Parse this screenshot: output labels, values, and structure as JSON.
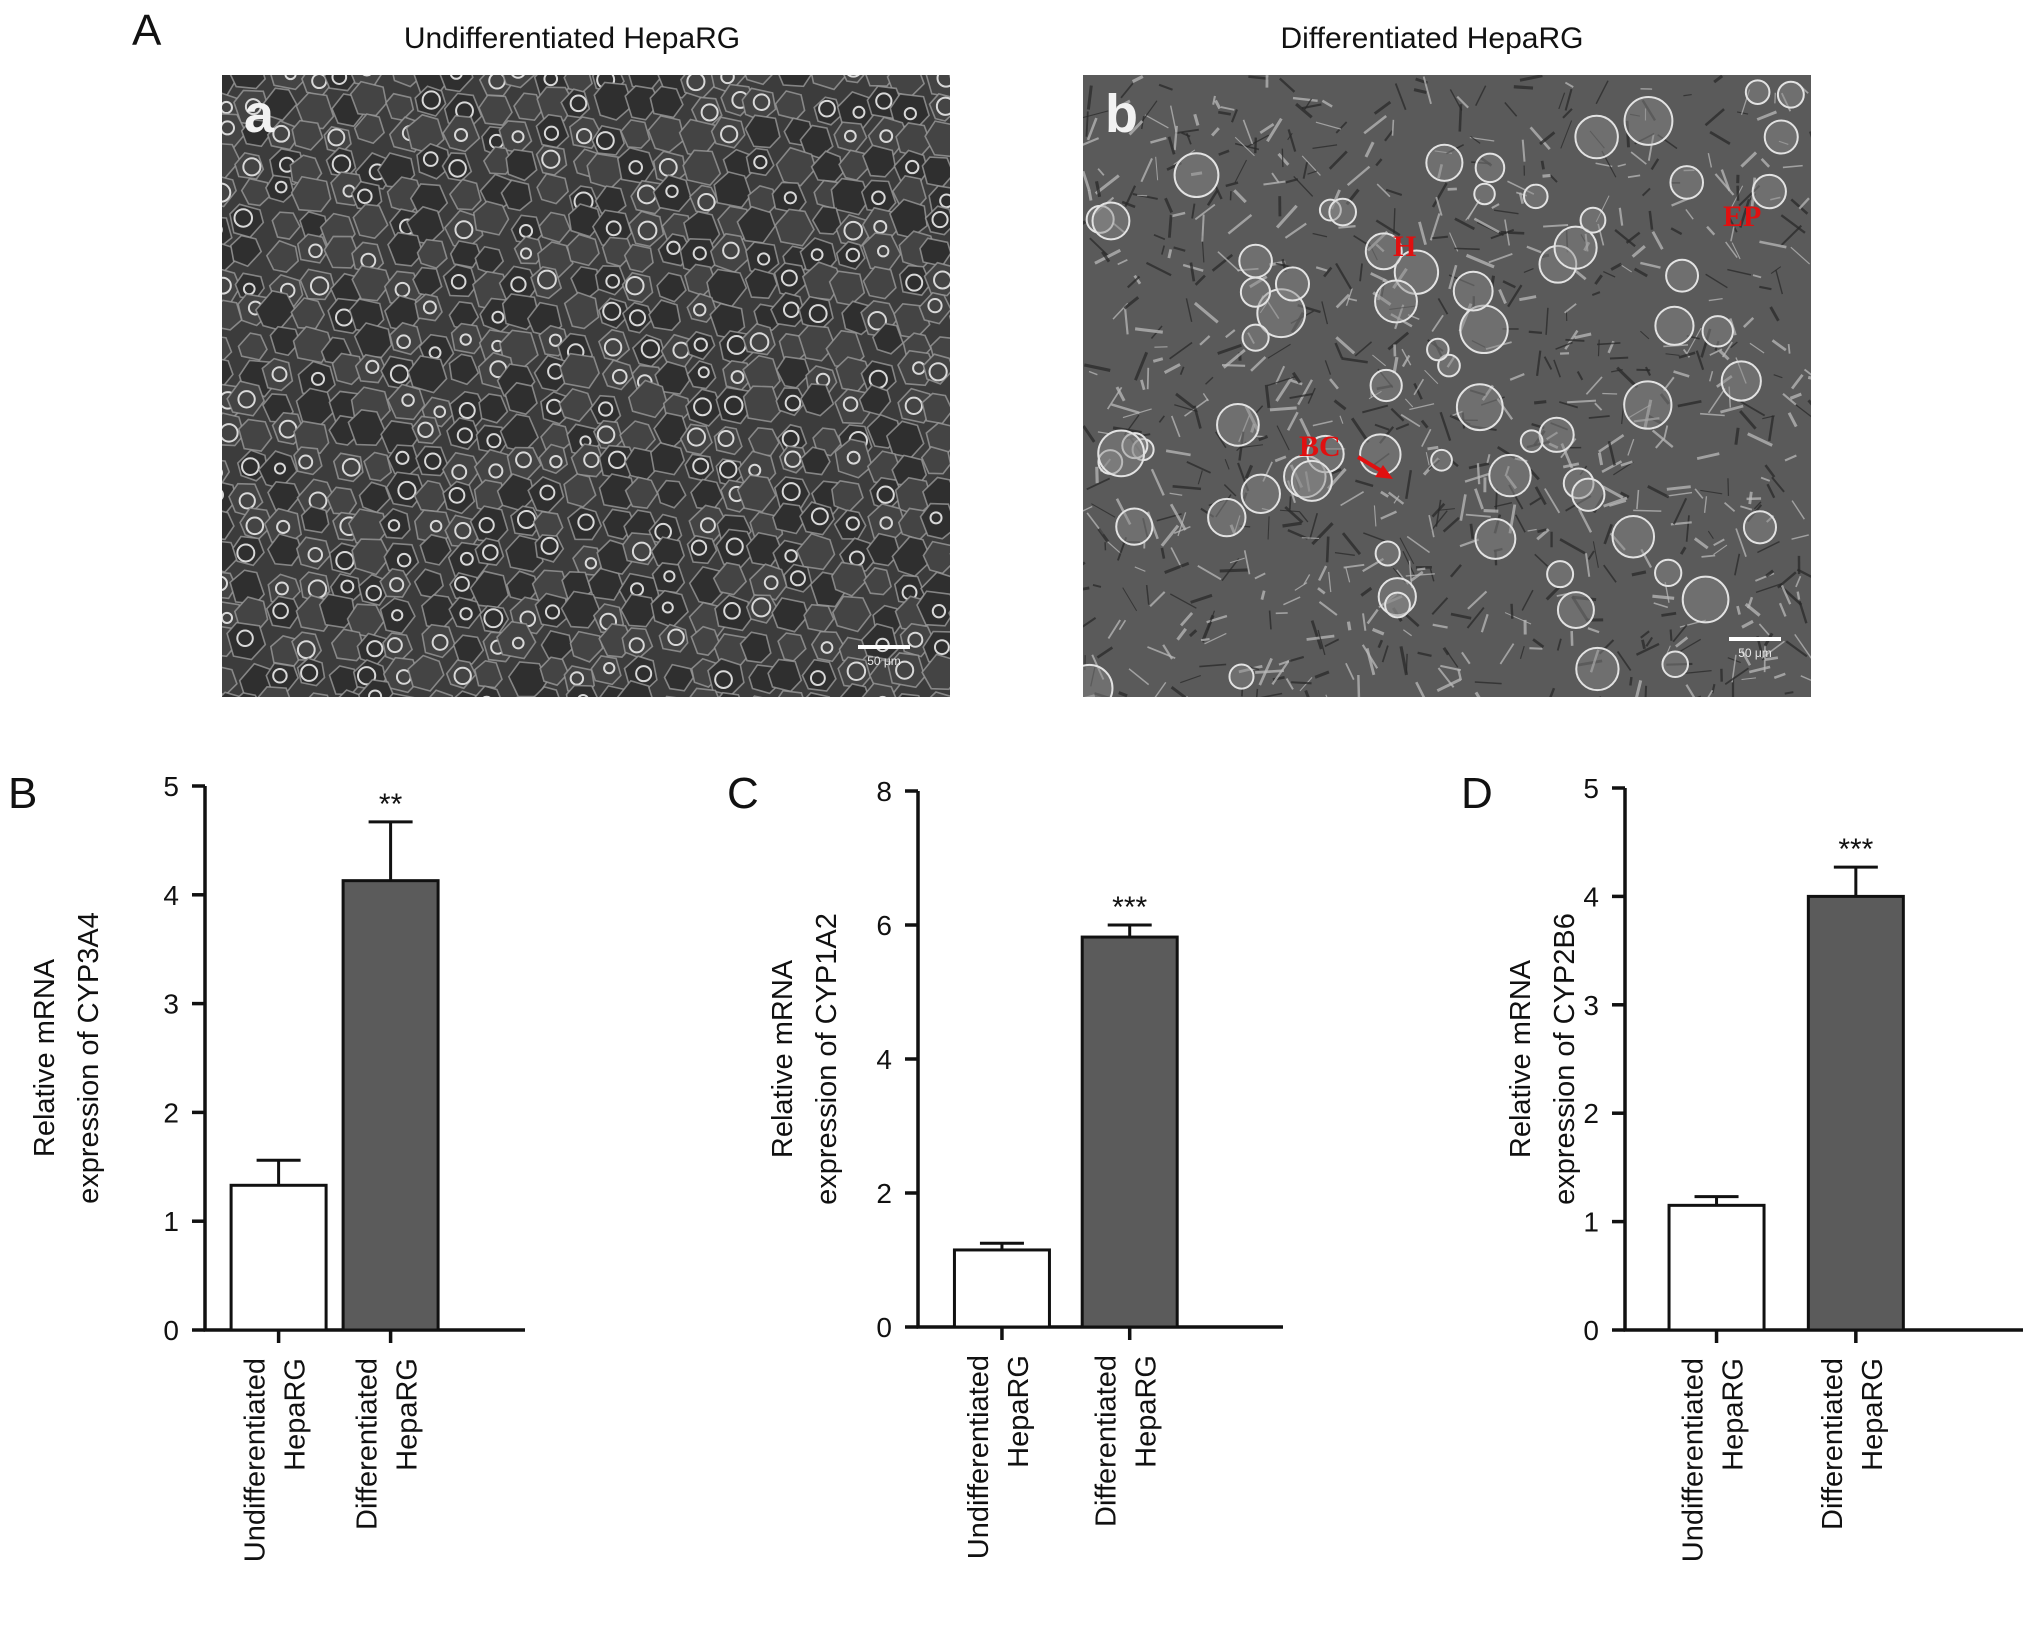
{
  "panel_A": {
    "letter": "A",
    "images": [
      {
        "title": "Undifferentiated HepaRG",
        "sub_letter": "a",
        "scale_label": "50 μm",
        "annotations": []
      },
      {
        "title": "Differentiated HepaRG",
        "sub_letter": "b",
        "scale_label": "50 μm",
        "annotations": [
          {
            "text": "H"
          },
          {
            "text": "EP"
          },
          {
            "text": "BC"
          }
        ]
      }
    ]
  },
  "colors": {
    "undifferentiated_bar": "#ffffff",
    "differentiated_bar": "#5b5b5b",
    "annotation": "#e01010"
  },
  "chart_data": [
    {
      "panel": "B",
      "type": "bar",
      "categories": [
        "Undifferentiated\nHepaRG",
        "Differentiated\nHepaRG"
      ],
      "values": [
        1.33,
        4.13
      ],
      "errors": [
        0.23,
        0.54
      ],
      "significance": [
        "",
        "**"
      ],
      "ylabel_lines": [
        "Relative mRNA",
        "expression of CYP3A4"
      ],
      "ylim": [
        0,
        5
      ],
      "yticks": [
        0,
        1,
        2,
        3,
        4,
        5
      ]
    },
    {
      "panel": "C",
      "type": "bar",
      "categories": [
        "Undifferentiated\nHepaRG",
        "Differentiated\nHepaRG"
      ],
      "values": [
        1.15,
        5.82
      ],
      "errors": [
        0.1,
        0.18
      ],
      "significance": [
        "",
        "***"
      ],
      "ylabel_lines": [
        "Relative mRNA",
        "expression of CYP1A2"
      ],
      "ylim": [
        0,
        8
      ],
      "yticks": [
        0,
        2,
        4,
        6,
        8
      ]
    },
    {
      "panel": "D",
      "type": "bar",
      "categories": [
        "Undifferentiated\nHepaRG",
        "Differentiated\nHepaRG"
      ],
      "values": [
        1.15,
        4.0
      ],
      "errors": [
        0.08,
        0.27
      ],
      "significance": [
        "",
        "***"
      ],
      "ylabel_lines": [
        "Relative mRNA",
        "expression of CYP2B6"
      ],
      "ylim": [
        0,
        5
      ],
      "yticks": [
        0,
        1,
        2,
        3,
        4,
        5
      ]
    }
  ]
}
